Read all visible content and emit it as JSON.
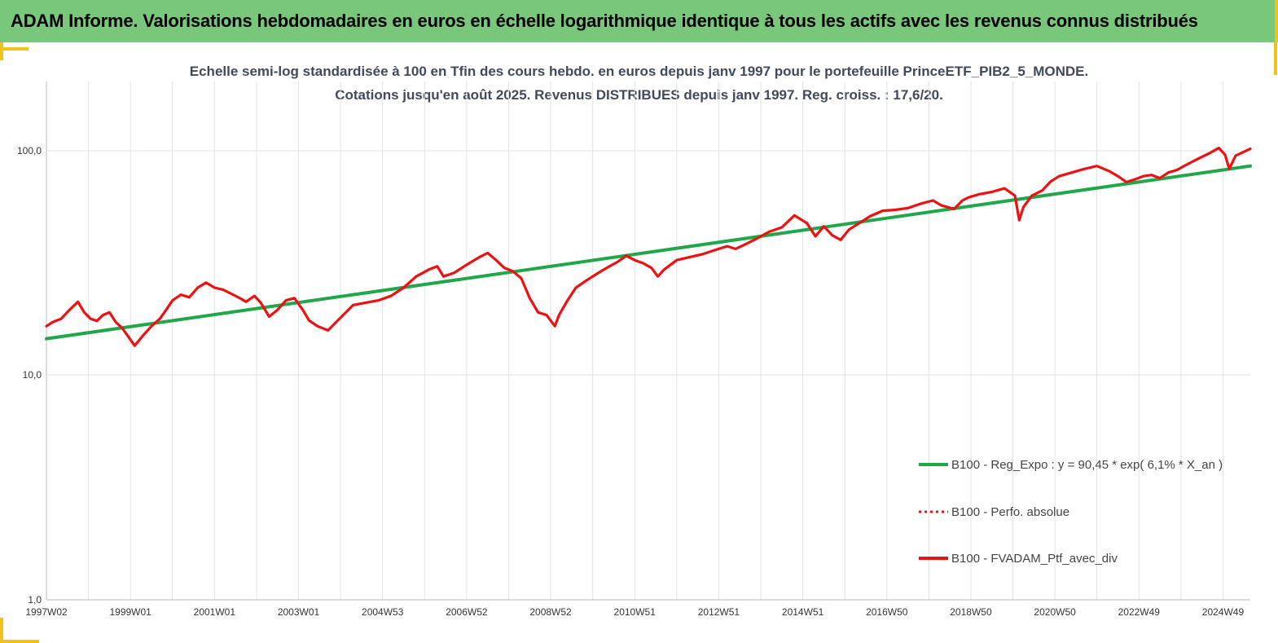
{
  "banner": {
    "title": "ADAM Informe. Valorisations hebdomadaires en euros en échelle logarithmique identique à tous les actifs avec les revenus connus distribués"
  },
  "colors": {
    "banner_bg": "#79c77a",
    "accent_yellow": "#f1c21a",
    "regression_line": "#1fa74a",
    "portfolio_line": "#ee1111"
  },
  "chart_data": {
    "type": "line",
    "title": "Echelle semi-log standardisée à 100 en Tfin des cours hebdo.  en euros depuis janv 1997 pour le portefeuille PrinceETF_PIB2_5_MONDE.",
    "subtitle": "Cotations jusqu'en août 2025. Revenus DISTRIBUES depuis janv 1997. Reg. croiss. : 17,6/20.",
    "y_scale": "log",
    "ylim": [
      1,
      200
    ],
    "x_range": [
      1997.0,
      2025.65
    ],
    "y_ticks": [
      {
        "value": 100,
        "label": "100,0"
      },
      {
        "value": 10,
        "label": "10,0"
      },
      {
        "value": 1,
        "label": "1,0"
      }
    ],
    "x_ticks": [
      {
        "x": 1997.0,
        "label": "1997W02"
      },
      {
        "x": 1999.0,
        "label": "1999W01"
      },
      {
        "x": 2001.0,
        "label": "2001W01"
      },
      {
        "x": 2003.0,
        "label": "2003W01"
      },
      {
        "x": 2005.0,
        "label": "2004W53"
      },
      {
        "x": 2007.0,
        "label": "2006W52"
      },
      {
        "x": 2009.0,
        "label": "2008W52"
      },
      {
        "x": 2011.0,
        "label": "2010W51"
      },
      {
        "x": 2013.0,
        "label": "2012W51"
      },
      {
        "x": 2015.0,
        "label": "2014W51"
      },
      {
        "x": 2017.0,
        "label": "2016W50"
      },
      {
        "x": 2019.0,
        "label": "2018W50"
      },
      {
        "x": 2021.0,
        "label": "2020W50"
      },
      {
        "x": 2023.0,
        "label": "2022W49"
      },
      {
        "x": 2025.0,
        "label": "2024W49"
      }
    ],
    "grid": "vertical",
    "legend_position": "bottom-right",
    "series": [
      {
        "name": "B100 - Reg_Expo : y = 90,45 * exp( 6,1% *  X_an )",
        "style": "solid",
        "color": "#1fa74a",
        "x": [
          1997.0,
          2025.65
        ],
        "y": [
          14.5,
          85.5
        ]
      },
      {
        "name": "B100 - Perfo. absolue",
        "style": "dotted",
        "color": "#ee1111",
        "x": [],
        "y": []
      },
      {
        "name": "B100 - FVADAM_Ptf_avec_div",
        "style": "solid",
        "color": "#ee1111",
        "x": [
          1997.0,
          1997.15,
          1997.35,
          1997.55,
          1997.75,
          1997.9,
          1998.05,
          1998.2,
          1998.35,
          1998.5,
          1998.65,
          1998.8,
          1998.95,
          1999.1,
          1999.3,
          1999.5,
          1999.7,
          1999.85,
          2000.0,
          2000.2,
          2000.4,
          2000.6,
          2000.8,
          2001.0,
          2001.2,
          2001.4,
          2001.6,
          2001.75,
          2001.95,
          2002.1,
          2002.3,
          2002.5,
          2002.7,
          2002.9,
          2003.1,
          2003.25,
          2003.45,
          2003.7,
          2004.0,
          2004.3,
          2004.6,
          2004.9,
          2005.2,
          2005.5,
          2005.8,
          2006.1,
          2006.3,
          2006.45,
          2006.7,
          2007.0,
          2007.3,
          2007.5,
          2007.7,
          2007.9,
          2008.1,
          2008.3,
          2008.5,
          2008.7,
          2008.9,
          2009.1,
          2009.2,
          2009.4,
          2009.6,
          2009.8,
          2010.0,
          2010.2,
          2010.4,
          2010.6,
          2010.8,
          2011.0,
          2011.2,
          2011.4,
          2011.55,
          2011.7,
          2012.0,
          2012.3,
          2012.6,
          2012.9,
          2013.2,
          2013.4,
          2013.6,
          2013.9,
          2014.2,
          2014.5,
          2014.8,
          2015.1,
          2015.3,
          2015.5,
          2015.7,
          2015.9,
          2016.1,
          2016.3,
          2016.6,
          2016.9,
          2017.2,
          2017.5,
          2017.8,
          2018.1,
          2018.3,
          2018.6,
          2018.8,
          2018.95,
          2019.2,
          2019.5,
          2019.8,
          2020.05,
          2020.15,
          2020.25,
          2020.45,
          2020.7,
          2020.9,
          2021.1,
          2021.4,
          2021.7,
          2022.0,
          2022.3,
          2022.5,
          2022.7,
          2022.9,
          2023.1,
          2023.3,
          2023.5,
          2023.7,
          2023.9,
          2024.1,
          2024.3,
          2024.5,
          2024.7,
          2024.9,
          2025.05,
          2025.15,
          2025.3,
          2025.45,
          2025.65
        ],
        "y": [
          16.5,
          17.2,
          17.8,
          19.5,
          21.2,
          19.0,
          17.8,
          17.4,
          18.5,
          19.0,
          17.2,
          16.2,
          14.8,
          13.5,
          15.0,
          16.5,
          17.8,
          19.5,
          21.5,
          22.8,
          22.2,
          24.5,
          25.8,
          24.5,
          24.0,
          23.0,
          22.0,
          21.2,
          22.5,
          21.0,
          18.2,
          19.5,
          21.5,
          22.0,
          19.5,
          17.5,
          16.5,
          15.8,
          18.0,
          20.5,
          21.0,
          21.5,
          22.5,
          24.5,
          27.5,
          29.5,
          30.5,
          27.5,
          28.5,
          31.0,
          33.5,
          35.0,
          32.5,
          30.0,
          29.0,
          27.0,
          22.0,
          19.0,
          18.5,
          16.5,
          18.5,
          21.5,
          24.5,
          26.0,
          27.5,
          29.0,
          30.5,
          32.0,
          34.0,
          32.5,
          31.5,
          30.0,
          27.5,
          29.5,
          32.5,
          33.5,
          34.5,
          36.0,
          37.5,
          36.5,
          38.0,
          40.5,
          43.5,
          45.5,
          51.5,
          47.5,
          41.5,
          46.0,
          42.0,
          40.0,
          44.5,
          47.0,
          51.0,
          54.0,
          54.5,
          55.5,
          58.0,
          60.0,
          57.0,
          55.0,
          60.0,
          62.0,
          64.0,
          65.5,
          68.0,
          63.0,
          49.0,
          56.0,
          63.0,
          66.5,
          73.0,
          77.0,
          80.0,
          83.0,
          85.5,
          81.0,
          77.0,
          72.5,
          74.5,
          77.0,
          78.0,
          75.5,
          80.0,
          82.0,
          86.0,
          90.0,
          94.0,
          98.0,
          103.0,
          96.0,
          83.0,
          95.0,
          98.0,
          102.0
        ]
      }
    ]
  }
}
